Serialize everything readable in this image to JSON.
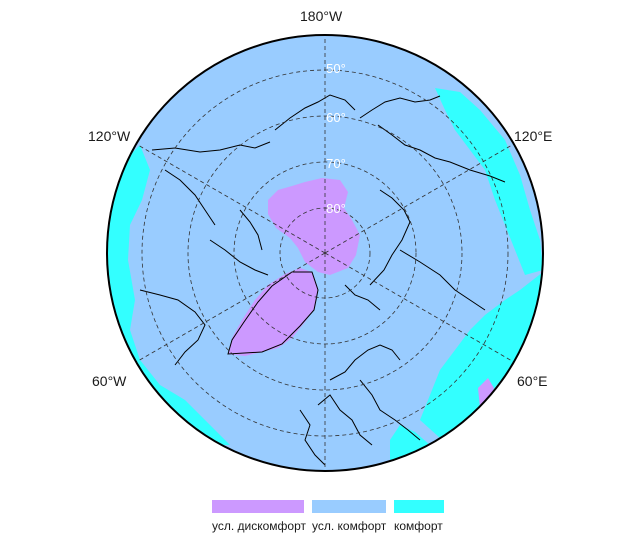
{
  "map": {
    "projection": "north-polar-stereographic",
    "colors": {
      "background": "#ffffff",
      "ocean": "#99ccff",
      "coast": "#000000",
      "graticule": "#333333",
      "lat_label": "#ffffff",
      "lon_label": "#1a1a1a",
      "outline": "#000000"
    },
    "longitude_labels": [
      "180°W",
      "120°E",
      "60°E",
      "60°W",
      "120°W"
    ],
    "latitude_labels": [
      "50°",
      "60°",
      "70°",
      "80°"
    ],
    "regions": [
      {
        "key": "discomfort",
        "color": "#cc99ff"
      },
      {
        "key": "comfort",
        "color": "#33ffff"
      }
    ]
  },
  "legend": {
    "items": [
      {
        "label": "усл. дискомфорт",
        "color": "#cc99ff"
      },
      {
        "label": "усл. комфорт",
        "color": "#99ccff"
      },
      {
        "label": "комфорт",
        "color": "#33ffff"
      }
    ]
  }
}
